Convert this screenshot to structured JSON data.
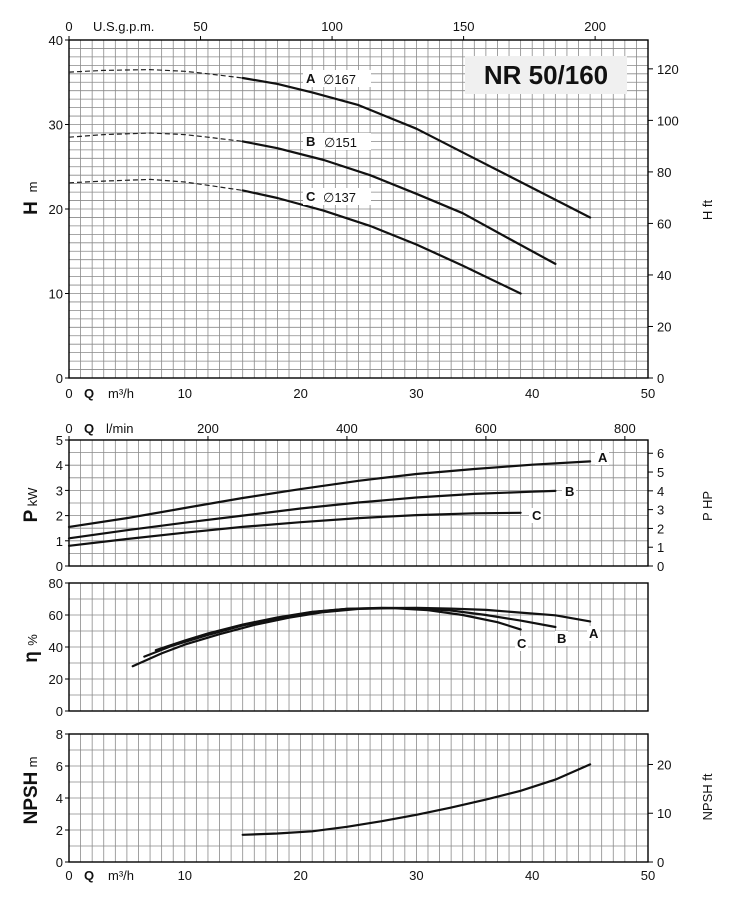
{
  "title": "NR 50/160",
  "top_axis_label": "U.S.g.p.m.",
  "flow_axis_label": "Q",
  "flow_unit": "m³/h",
  "lmin_label": "Q",
  "lmin_unit": "l/min",
  "diameter_symbol": "∅",
  "chart_data": [
    {
      "type": "line",
      "panel": "head",
      "ylabel": "H",
      "yunit": "m",
      "y2label": "H ft",
      "xlim": [
        0,
        50
      ],
      "ylim": [
        0,
        40
      ],
      "xticks": [
        "0",
        "10",
        "20",
        "30",
        "40",
        "50"
      ],
      "yticks": [
        "0",
        "10",
        "20",
        "30",
        "40"
      ],
      "y2lim": [
        0,
        131.2
      ],
      "y2ticks": [
        "0",
        "20",
        "40",
        "60",
        "80",
        "100",
        "120"
      ],
      "x2lim": [
        0,
        220.1
      ],
      "x2ticks": [
        "0",
        "50",
        "100",
        "150",
        "200"
      ],
      "grid": true,
      "series": [
        {
          "name": "A",
          "label": "167",
          "dashed": [
            [
              0,
              36.2
            ],
            [
              3,
              36.4
            ],
            [
              7,
              36.5
            ],
            [
              10,
              36.3
            ],
            [
              12,
              36.0
            ],
            [
              15,
              35.5
            ]
          ],
          "solid": [
            [
              15,
              35.5
            ],
            [
              18,
              34.8
            ],
            [
              21,
              33.8
            ],
            [
              25,
              32.3
            ],
            [
              30,
              29.5
            ],
            [
              35,
              26.0
            ],
            [
              40,
              22.5
            ],
            [
              45,
              19.0
            ]
          ]
        },
        {
          "name": "B",
          "label": "151",
          "dashed": [
            [
              0,
              28.5
            ],
            [
              3,
              28.8
            ],
            [
              7,
              29.0
            ],
            [
              10,
              28.8
            ],
            [
              12,
              28.5
            ],
            [
              15,
              28.0
            ]
          ],
          "solid": [
            [
              15,
              28.0
            ],
            [
              18,
              27.2
            ],
            [
              22,
              25.8
            ],
            [
              26,
              24.0
            ],
            [
              30,
              21.8
            ],
            [
              34,
              19.5
            ],
            [
              38,
              16.5
            ],
            [
              42,
              13.5
            ]
          ]
        },
        {
          "name": "C",
          "label": "137",
          "dashed": [
            [
              0,
              23.1
            ],
            [
              3,
              23.3
            ],
            [
              7,
              23.5
            ],
            [
              10,
              23.2
            ],
            [
              12,
              22.8
            ],
            [
              15,
              22.2
            ]
          ],
          "solid": [
            [
              15,
              22.2
            ],
            [
              18,
              21.3
            ],
            [
              22,
              19.8
            ],
            [
              26,
              18.0
            ],
            [
              30,
              15.8
            ],
            [
              34,
              13.3
            ],
            [
              39,
              10.0
            ]
          ]
        }
      ]
    },
    {
      "type": "line",
      "panel": "power",
      "ylabel": "P",
      "yunit": "kW",
      "y2label": "P HP",
      "xlim": [
        0,
        50
      ],
      "ylim": [
        0,
        5
      ],
      "yticks": [
        "0",
        "1",
        "2",
        "3",
        "4",
        "5"
      ],
      "y2lim": [
        0,
        6.705
      ],
      "y2ticks": [
        "0",
        "1",
        "2",
        "3",
        "4",
        "5",
        "6"
      ],
      "x2lim": [
        0,
        833.3
      ],
      "x2ticks": [
        "0",
        "200",
        "400",
        "600",
        "800"
      ],
      "grid": true,
      "series": [
        {
          "name": "A",
          "points": [
            [
              0,
              1.55
            ],
            [
              5,
              1.9
            ],
            [
              10,
              2.3
            ],
            [
              15,
              2.7
            ],
            [
              20,
              3.05
            ],
            [
              25,
              3.38
            ],
            [
              30,
              3.65
            ],
            [
              35,
              3.85
            ],
            [
              40,
              4.02
            ],
            [
              45,
              4.15
            ]
          ]
        },
        {
          "name": "B",
          "points": [
            [
              0,
              1.1
            ],
            [
              5,
              1.42
            ],
            [
              10,
              1.72
            ],
            [
              15,
              2.0
            ],
            [
              20,
              2.28
            ],
            [
              25,
              2.52
            ],
            [
              30,
              2.72
            ],
            [
              35,
              2.86
            ],
            [
              40,
              2.95
            ],
            [
              42,
              2.98
            ]
          ]
        },
        {
          "name": "C",
          "points": [
            [
              0,
              0.8
            ],
            [
              5,
              1.07
            ],
            [
              10,
              1.32
            ],
            [
              15,
              1.55
            ],
            [
              20,
              1.74
            ],
            [
              25,
              1.9
            ],
            [
              30,
              2.02
            ],
            [
              35,
              2.09
            ],
            [
              39,
              2.11
            ]
          ]
        }
      ]
    },
    {
      "type": "line",
      "panel": "efficiency",
      "ylabel": "η",
      "yunit": "%",
      "xlim": [
        0,
        50
      ],
      "ylim": [
        0,
        80
      ],
      "yticks": [
        "0",
        "20",
        "40",
        "60",
        "80"
      ],
      "grid": true,
      "series": [
        {
          "name": "A",
          "points": [
            [
              7.5,
              38.0
            ],
            [
              10,
              44.0
            ],
            [
              12,
              48.5
            ],
            [
              15,
              54.0
            ],
            [
              18,
              58.5
            ],
            [
              21,
              62.0
            ],
            [
              24,
              63.8
            ],
            [
              27,
              64.3
            ],
            [
              30,
              64.5
            ],
            [
              33,
              64.0
            ],
            [
              36,
              63.2
            ],
            [
              39,
              61.5
            ],
            [
              42,
              59.8
            ],
            [
              45,
              56.0
            ]
          ]
        },
        {
          "name": "B",
          "points": [
            [
              6.5,
              34.0
            ],
            [
              9,
              41.0
            ],
            [
              12,
              47.5
            ],
            [
              15,
              53.5
            ],
            [
              18,
              58.0
            ],
            [
              21,
              61.8
            ],
            [
              24,
              63.8
            ],
            [
              27,
              64.5
            ],
            [
              30,
              64.2
            ],
            [
              33,
              62.8
            ],
            [
              36,
              60.0
            ],
            [
              39,
              56.5
            ],
            [
              42,
              52.5
            ]
          ]
        },
        {
          "name": "C",
          "points": [
            [
              5.5,
              28.0
            ],
            [
              8,
              36.0
            ],
            [
              10,
              41.5
            ],
            [
              13,
              48.0
            ],
            [
              16,
              53.8
            ],
            [
              19,
              58.3
            ],
            [
              22,
              61.8
            ],
            [
              25,
              63.8
            ],
            [
              28,
              64.3
            ],
            [
              31,
              63.0
            ],
            [
              34,
              60.0
            ],
            [
              37,
              55.5
            ],
            [
              39,
              51.0
            ]
          ]
        }
      ]
    },
    {
      "type": "line",
      "panel": "npsh",
      "ylabel": "NPSH",
      "yunit": "m",
      "y2label": "NPSH ft",
      "xlim": [
        0,
        50
      ],
      "ylim": [
        0,
        8
      ],
      "xticks": [
        "0",
        "10",
        "20",
        "30",
        "40",
        "50"
      ],
      "yticks": [
        "0",
        "2",
        "4",
        "6",
        "8"
      ],
      "y2lim": [
        0,
        26.25
      ],
      "y2ticks": [
        "0",
        "10",
        "20"
      ],
      "grid": true,
      "series": [
        {
          "name": "NPSH",
          "points": [
            [
              15,
              1.7
            ],
            [
              18,
              1.78
            ],
            [
              21,
              1.92
            ],
            [
              24,
              2.2
            ],
            [
              27,
              2.55
            ],
            [
              30,
              2.95
            ],
            [
              33,
              3.4
            ],
            [
              36,
              3.9
            ],
            [
              39,
              4.45
            ],
            [
              42,
              5.15
            ],
            [
              45,
              6.1
            ]
          ]
        }
      ]
    }
  ]
}
